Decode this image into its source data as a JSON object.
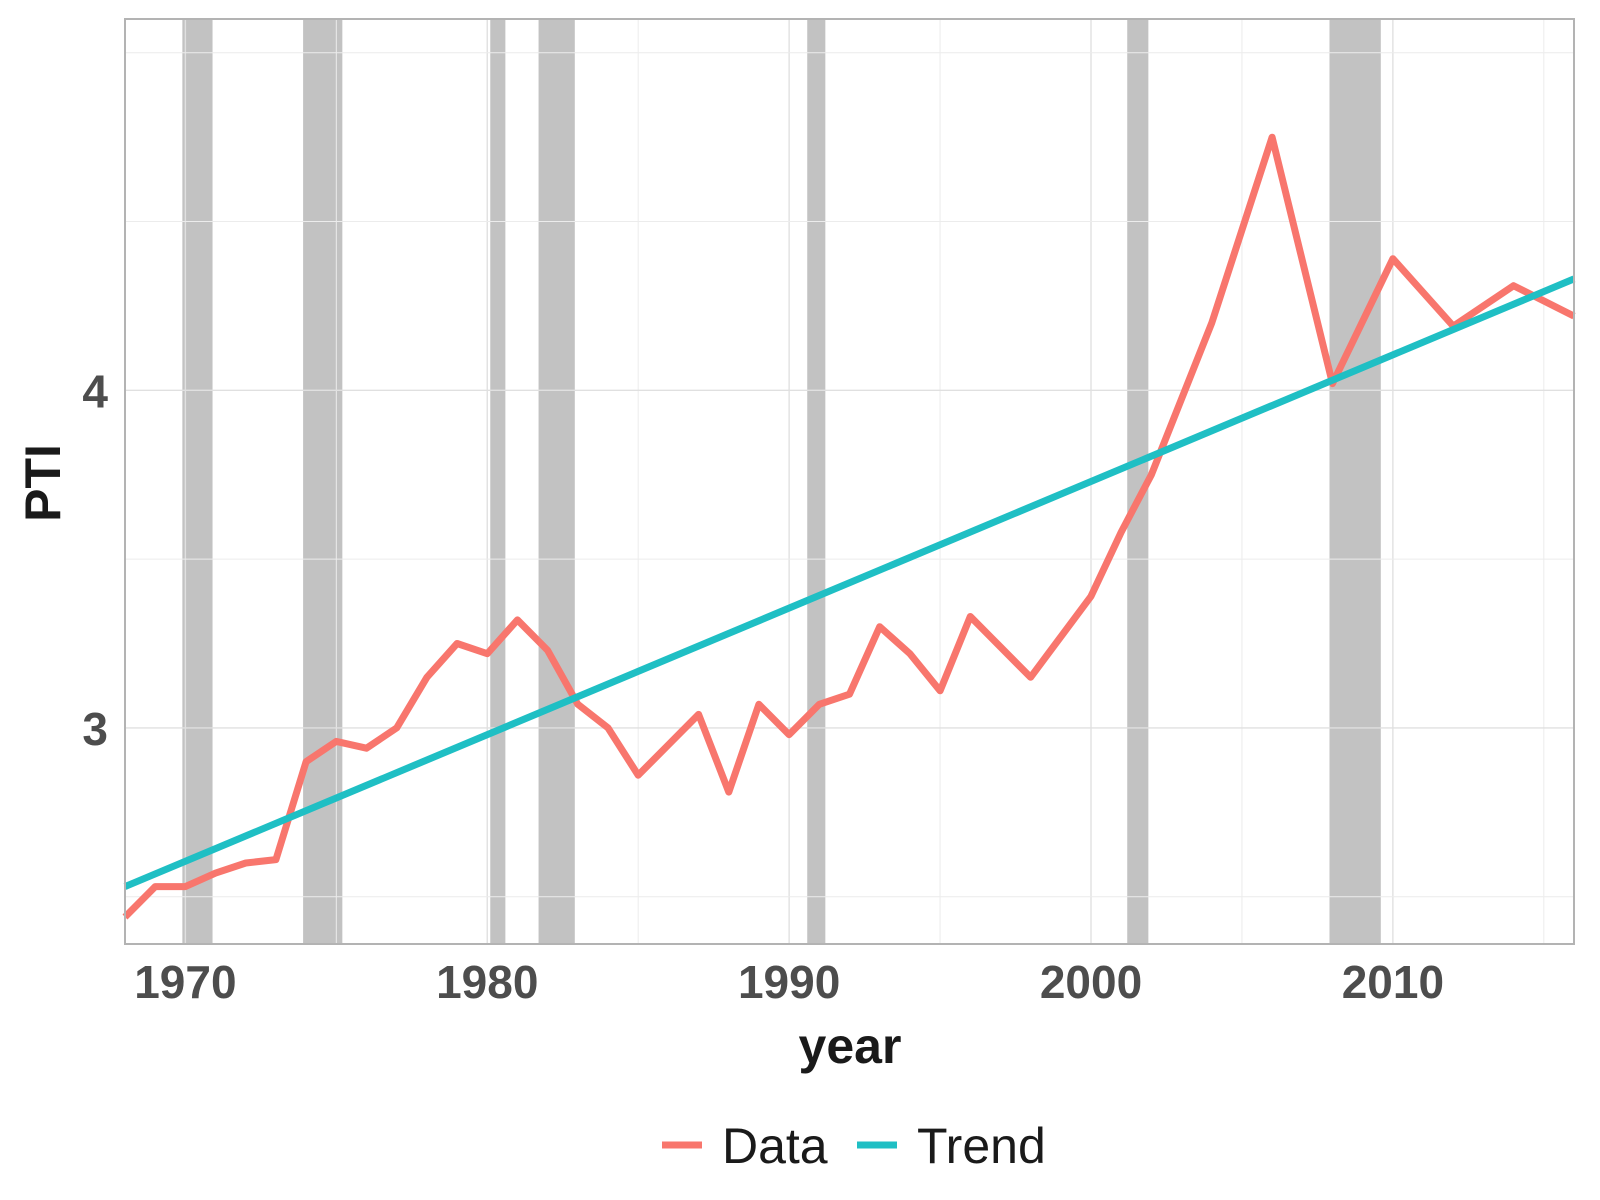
{
  "chart_data": {
    "type": "line",
    "title": "",
    "xlabel": "year",
    "ylabel": "PTI",
    "xlim": [
      1968,
      2016
    ],
    "ylim": [
      2.36,
      5.1
    ],
    "x_ticks": [
      1970,
      1980,
      1990,
      2000,
      2010
    ],
    "y_ticks": [
      3,
      4
    ],
    "grid": true,
    "legend_position": "bottom",
    "recessions": [
      {
        "start": 1969.9,
        "end": 1970.9
      },
      {
        "start": 1973.9,
        "end": 1975.2
      },
      {
        "start": 1980.1,
        "end": 1980.6
      },
      {
        "start": 1981.7,
        "end": 1982.9
      },
      {
        "start": 1990.6,
        "end": 1991.2
      },
      {
        "start": 2001.2,
        "end": 2001.9
      },
      {
        "start": 2007.9,
        "end": 2009.6
      }
    ],
    "series": [
      {
        "name": "Data",
        "color": "#f8766d",
        "x": [
          1968,
          1969,
          1970,
          1971,
          1972,
          1973,
          1974,
          1975,
          1976,
          1977,
          1978,
          1979,
          1980,
          1981,
          1982,
          1983,
          1984,
          1985,
          1986,
          1987,
          1988,
          1989,
          1990,
          1991,
          1992,
          1993,
          1994,
          1995,
          1996,
          1997,
          1998,
          1999,
          2000,
          2001,
          2002,
          2004,
          2006,
          2008,
          2010,
          2012,
          2014,
          2016
        ],
        "values": [
          2.44,
          2.53,
          2.53,
          2.57,
          2.6,
          2.61,
          2.9,
          2.96,
          2.94,
          3.0,
          3.15,
          3.25,
          3.22,
          3.32,
          3.23,
          3.07,
          3.0,
          2.86,
          2.95,
          3.04,
          2.81,
          3.07,
          2.98,
          3.07,
          3.1,
          3.3,
          3.22,
          3.11,
          3.33,
          3.24,
          3.15,
          3.27,
          3.39,
          3.58,
          3.75,
          4.2,
          4.75,
          4.02,
          4.39,
          4.19,
          4.31,
          4.22
        ]
      },
      {
        "name": "Trend",
        "color": "#1fbfc4",
        "x": [
          1968,
          2016
        ],
        "values": [
          2.53,
          4.33
        ]
      }
    ]
  }
}
